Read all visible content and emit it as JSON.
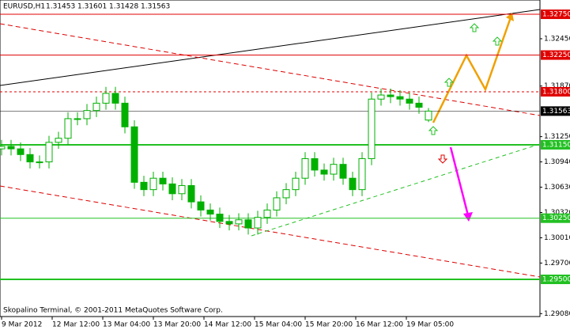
{
  "header": {
    "symbol": "EURUSD,H1",
    "ohlc": [
      1.31453,
      1.31601,
      1.31428,
      1.31563
    ]
  },
  "footer": "Skopalino Terminal, © 2001-2011 MetaQuotes Software Corp.",
  "chart_data": {
    "type": "candlestick",
    "color": "#00b000",
    "x": [
      0,
      3,
      6,
      9,
      12,
      15,
      18,
      21,
      24,
      27,
      30,
      33,
      36,
      39,
      42,
      45,
      48,
      51,
      54,
      57,
      60,
      63,
      66,
      69,
      72,
      75,
      78,
      81,
      84,
      87,
      90,
      93,
      96,
      99,
      102,
      105,
      108,
      111,
      114,
      117,
      120,
      123,
      126,
      129,
      132,
      135
    ],
    "open": [
      1.311,
      1.3113,
      1.311,
      1.3103,
      1.3094,
      1.3094,
      1.3118,
      1.3123,
      1.3147,
      1.3147,
      1.3157,
      1.3166,
      1.3178,
      1.3166,
      1.3137,
      1.3069,
      1.306,
      1.3074,
      1.3067,
      1.3055,
      1.3065,
      1.3045,
      1.3035,
      1.303,
      1.3021,
      1.3018,
      1.3023,
      1.3013,
      1.3026,
      1.3035,
      1.305,
      1.306,
      1.3074,
      1.3098,
      1.3084,
      1.3079,
      1.3091,
      1.3074,
      1.306,
      1.3098,
      1.3171,
      1.3176,
      1.3174,
      1.3171,
      1.3166,
      1.31453
    ],
    "high": [
      1.3121,
      1.3121,
      1.3118,
      1.3111,
      1.3102,
      1.3126,
      1.3131,
      1.3155,
      1.3155,
      1.3165,
      1.3174,
      1.3186,
      1.3186,
      1.3174,
      1.3145,
      1.3077,
      1.3082,
      1.3082,
      1.3075,
      1.3073,
      1.3073,
      1.3053,
      1.3043,
      1.3038,
      1.3029,
      1.3031,
      1.3031,
      1.3034,
      1.3043,
      1.3058,
      1.3068,
      1.3082,
      1.3106,
      1.3106,
      1.3092,
      1.3099,
      1.3099,
      1.3082,
      1.3106,
      1.3179,
      1.3184,
      1.3184,
      1.3182,
      1.3179,
      1.3174,
      1.31601
    ],
    "low": [
      1.3102,
      1.3102,
      1.3095,
      1.3086,
      1.3086,
      1.3086,
      1.311,
      1.3115,
      1.3139,
      1.3139,
      1.3149,
      1.3158,
      1.3158,
      1.3129,
      1.3061,
      1.3052,
      1.3052,
      1.3059,
      1.3047,
      1.3047,
      1.3037,
      1.3027,
      1.3022,
      1.3013,
      1.301,
      1.301,
      1.3005,
      1.3005,
      1.3018,
      1.3027,
      1.3042,
      1.3052,
      1.3066,
      1.3076,
      1.3071,
      1.3071,
      1.3066,
      1.3052,
      1.3052,
      1.309,
      1.3163,
      1.3166,
      1.3163,
      1.3158,
      1.3153,
      1.31428
    ],
    "close": [
      1.3113,
      1.311,
      1.3103,
      1.3094,
      1.3094,
      1.3118,
      1.3123,
      1.3147,
      1.3147,
      1.3157,
      1.3166,
      1.3178,
      1.3166,
      1.3137,
      1.3069,
      1.306,
      1.3074,
      1.3067,
      1.3055,
      1.3065,
      1.3045,
      1.3035,
      1.303,
      1.3021,
      1.3018,
      1.3023,
      1.3013,
      1.3026,
      1.3035,
      1.305,
      1.306,
      1.3074,
      1.3098,
      1.3084,
      1.3079,
      1.3091,
      1.3074,
      1.306,
      1.3098,
      1.3171,
      1.3176,
      1.3174,
      1.3171,
      1.3166,
      1.3161,
      1.31563
    ],
    "xlim": [
      -0.5,
      170.25
    ],
    "ylim": [
      1.29044,
      1.32925
    ],
    "xticks": [
      {
        "value": 0,
        "label": "9 Mar 2012"
      },
      {
        "value": 16,
        "label": "12 Mar 12:00"
      },
      {
        "value": 32,
        "label": "13 Mar 04:00"
      },
      {
        "value": 48,
        "label": "13 Mar 20:00"
      },
      {
        "value": 64,
        "label": "14 Mar 12:00"
      },
      {
        "value": 80,
        "label": "15 Mar 04:00"
      },
      {
        "value": 96,
        "label": "15 Mar 20:00"
      },
      {
        "value": 112,
        "label": "16 Mar 12:00"
      },
      {
        "value": 128,
        "label": "19 Mar 05:00"
      }
    ],
    "yticks": [
      {
        "value": 1.3245,
        "label": "1.32450"
      },
      {
        "value": 1.3187,
        "label": "1.31870"
      },
      {
        "value": 1.3125,
        "label": "1.31250"
      },
      {
        "value": 1.3094,
        "label": "1.30940"
      },
      {
        "value": 1.3063,
        "label": "1.30630"
      },
      {
        "value": 1.3032,
        "label": "1.30320"
      },
      {
        "value": 1.3001,
        "label": "1.30010"
      },
      {
        "value": 1.297,
        "label": "1.29700"
      },
      {
        "value": 1.2908,
        "label": "1.29080"
      }
    ],
    "levels": [
      {
        "value": 1.3275,
        "label": "1.32750",
        "color": "#e00000",
        "width": 1,
        "dash": false
      },
      {
        "value": 1.3225,
        "label": "1.32250",
        "color": "#e00000",
        "width": 1,
        "dash": false
      },
      {
        "value": 1.318,
        "label": "1.31800",
        "color": "#e00000",
        "width": 1,
        "dash": true
      },
      {
        "value": 1.31563,
        "color": "#000000",
        "width": 0.5,
        "dash": false
      },
      {
        "value": 1.3115,
        "label": "1.31150",
        "color": "#22c022",
        "width": 2,
        "dash": false
      },
      {
        "value": 1.3025,
        "label": "1.30250",
        "color": "#22c022",
        "width": 1,
        "dash": false
      },
      {
        "value": 1.295,
        "label": "1.29500",
        "color": "#22c022",
        "width": 2,
        "dash": false
      }
    ]
  }
}
